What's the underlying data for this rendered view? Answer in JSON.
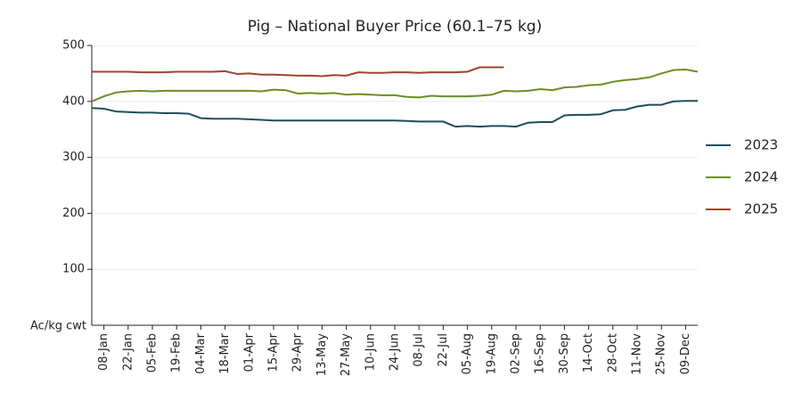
{
  "chart_data": {
    "type": "line",
    "title": "Pig – National Buyer Price (60.1–75 kg)",
    "y_label": "Ac/kg cwt",
    "categories": [
      null,
      "08-Jan",
      null,
      "22-Jan",
      null,
      "05-Feb",
      null,
      "19-Feb",
      null,
      "04-Mar",
      null,
      "18-Mar",
      null,
      "01-Apr",
      null,
      "15-Apr",
      null,
      "29-Apr",
      null,
      "13-May",
      null,
      "27-May",
      null,
      "10-Jun",
      null,
      "24-Jun",
      null,
      "08-Jul",
      null,
      "22-Jul",
      null,
      "05-Aug",
      null,
      "19-Aug",
      null,
      "02-Sep",
      null,
      "16-Sep",
      null,
      "30-Sep",
      null,
      "14-Oct",
      null,
      "28-Oct",
      null,
      "11-Nov",
      null,
      "25-Nov",
      null,
      "09-Dec",
      null
    ],
    "series": [
      {
        "name": "2023",
        "color": "#1f4e5a",
        "values": [
          388,
          387,
          382,
          381,
          380,
          380,
          379,
          379,
          378,
          370,
          369,
          369,
          369,
          368,
          367,
          366,
          366,
          366,
          366,
          366,
          366,
          366,
          366,
          366,
          366,
          366,
          365,
          364,
          364,
          364,
          355,
          356,
          355,
          356,
          356,
          355,
          362,
          363,
          363,
          375,
          376,
          376,
          377,
          384,
          385,
          391,
          394,
          394,
          400,
          401,
          401
        ]
      },
      {
        "name": "2024",
        "color": "#6b8e23",
        "values": [
          400,
          409,
          416,
          418,
          419,
          418,
          419,
          419,
          419,
          419,
          419,
          419,
          419,
          419,
          418,
          421,
          420,
          414,
          415,
          414,
          415,
          412,
          413,
          412,
          411,
          411,
          408,
          407,
          410,
          409,
          409,
          409,
          410,
          412,
          419,
          418,
          419,
          422,
          420,
          425,
          426,
          429,
          430,
          435,
          438,
          440,
          443,
          450,
          456,
          457,
          453
        ]
      },
      {
        "name": "2025",
        "color": "#a0442c",
        "values": [
          453,
          453,
          453,
          453,
          452,
          452,
          452,
          453,
          453,
          453,
          453,
          454,
          449,
          450,
          448,
          448,
          447,
          446,
          446,
          445,
          447,
          446,
          452,
          451,
          451,
          452,
          452,
          451,
          452,
          452,
          452,
          453,
          461,
          461,
          461,
          null,
          null,
          null,
          null,
          null,
          null,
          null,
          null,
          null,
          null,
          null,
          null,
          null,
          null,
          null,
          null
        ]
      }
    ],
    "ylim": [
      0,
      500
    ],
    "yticks": [
      100,
      200,
      300,
      400,
      500
    ],
    "grid": true,
    "legend": "right"
  }
}
